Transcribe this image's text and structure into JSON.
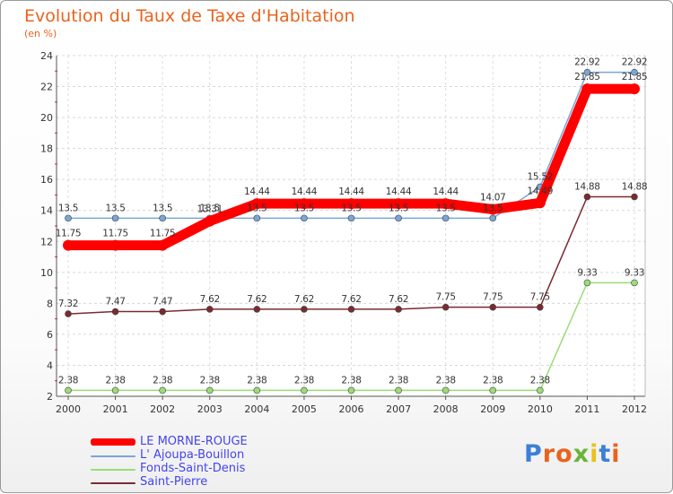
{
  "title": "Evolution du Taux de Taxe d'Habitation",
  "subtitle": "(en %)",
  "logo": {
    "text": "Proxiti",
    "colors": [
      "#3c7fd6",
      "#e8641e",
      "#e8641e",
      "#6bb33a",
      "#e8c21e",
      "#3c7fd6",
      "#e8641e"
    ]
  },
  "chart_data": {
    "type": "line",
    "title": "Evolution du Taux de Taxe d'Habitation",
    "ylabel": "(en %)",
    "xlabel": "",
    "ylim": [
      2,
      24
    ],
    "yticks": [
      2,
      4,
      6,
      8,
      10,
      12,
      14,
      16,
      18,
      20,
      22,
      24
    ],
    "categories": [
      "2000",
      "2001",
      "2002",
      "2003",
      "2004",
      "2005",
      "2006",
      "2007",
      "2008",
      "2009",
      "2010",
      "2011",
      "2012"
    ],
    "series": [
      {
        "name": "LE MORNE-ROUGE",
        "color": "#ff0000",
        "values": [
          11.75,
          11.75,
          11.75,
          13.31,
          14.44,
          14.44,
          14.44,
          14.44,
          14.44,
          14.07,
          14.49,
          21.85,
          21.85
        ],
        "labels": [
          "11.75",
          "11.75",
          "11.75",
          "13.31",
          "14.44",
          "14.44",
          "14.44",
          "14.44",
          "14.44",
          "14.07",
          "14.49",
          "21.85",
          "21.85"
        ]
      },
      {
        "name": "L' Ajoupa-Bouillon",
        "color": "#7aa6d6",
        "values": [
          13.5,
          13.5,
          13.5,
          13.5,
          13.5,
          13.5,
          13.5,
          13.5,
          13.5,
          13.5,
          15.52,
          22.92,
          22.92
        ],
        "labels": [
          "13.5",
          "13.5",
          "13.5",
          "13.5",
          "13.5",
          "13.5",
          "13.5",
          "13.5",
          "13.5",
          "13.5",
          "15.52",
          "22.92",
          "22.92"
        ]
      },
      {
        "name": "Fonds-Saint-Denis",
        "color": "#99dd77",
        "values": [
          2.38,
          2.38,
          2.38,
          2.38,
          2.38,
          2.38,
          2.38,
          2.38,
          2.38,
          2.38,
          2.38,
          9.33,
          9.33
        ],
        "labels": [
          "2.38",
          "2.38",
          "2.38",
          "2.38",
          "2.38",
          "2.38",
          "2.38",
          "2.38",
          "2.38",
          "2.38",
          "2.38",
          "9.33",
          "9.33"
        ]
      },
      {
        "name": "Saint-Pierre",
        "color": "#7a2a30",
        "values": [
          7.32,
          7.47,
          7.47,
          7.62,
          7.62,
          7.62,
          7.62,
          7.62,
          7.75,
          7.75,
          7.75,
          14.88,
          14.88
        ],
        "labels": [
          "7.32",
          "7.47",
          "7.47",
          "7.62",
          "7.62",
          "7.62",
          "7.62",
          "7.62",
          "7.75",
          "7.75",
          "7.75",
          "14.88",
          "14.88"
        ]
      }
    ],
    "legend": "bottom-left"
  }
}
